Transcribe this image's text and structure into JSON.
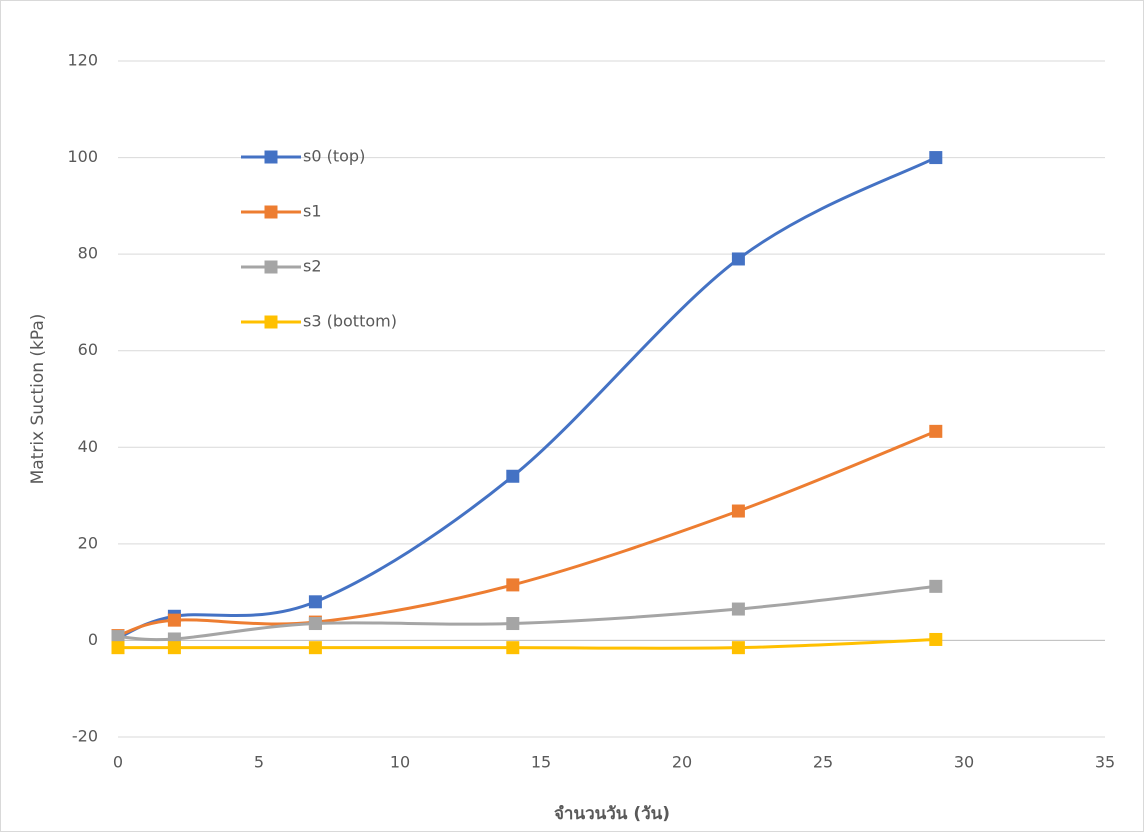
{
  "chart_data": {
    "type": "line",
    "x_label": "จำนวนวัน (วัน)",
    "y_label": "Matrix Suction (kPa)",
    "x": [
      0,
      2,
      7,
      14,
      22,
      29
    ],
    "series": [
      {
        "name": "s0 (top)",
        "color": "#4472c4",
        "values": [
          0.5,
          5,
          8,
          34,
          79,
          100
        ]
      },
      {
        "name": "s1",
        "color": "#ed7d31",
        "values": [
          1,
          4.2,
          3.8,
          11.5,
          26.8,
          43.3
        ]
      },
      {
        "name": "s2",
        "color": "#a5a5a5",
        "values": [
          0.8,
          0.3,
          3.5,
          3.5,
          6.5,
          11.2
        ]
      },
      {
        "name": "s3 (bottom)",
        "color": "#ffc000",
        "values": [
          -1.5,
          -1.5,
          -1.5,
          -1.5,
          -1.5,
          0.2
        ]
      }
    ],
    "xlim": [
      0,
      35
    ],
    "xticks": [
      0,
      5,
      10,
      15,
      20,
      25,
      30,
      35
    ],
    "ylim": [
      -20,
      120
    ],
    "yticks": [
      -20,
      0,
      20,
      40,
      60,
      80,
      100,
      120
    ],
    "grid": true,
    "smooth": true,
    "legend": "upper left"
  }
}
